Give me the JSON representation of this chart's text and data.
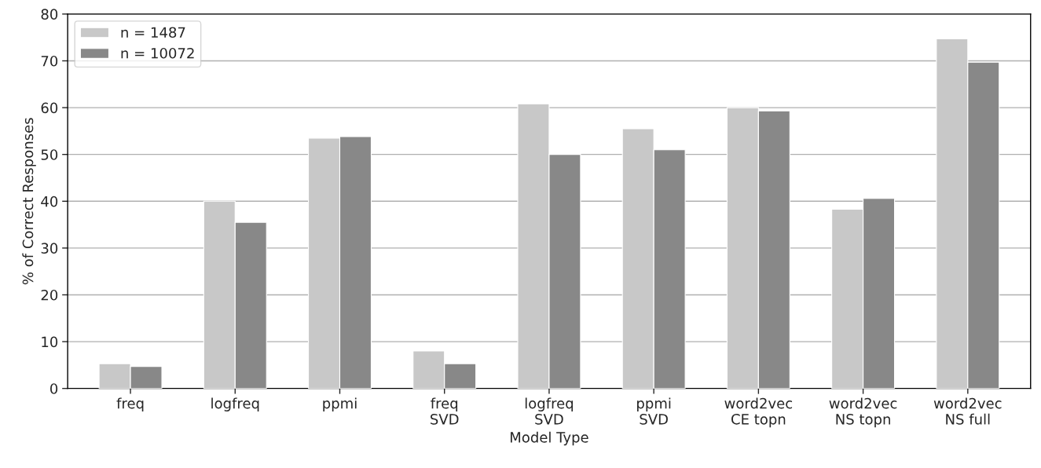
{
  "chart_data": {
    "type": "bar",
    "xlabel": "Model Type",
    "ylabel": "% of Correct Responses",
    "categories": [
      "freq",
      "logfreq",
      "ppmi",
      "freq\nSVD",
      "logfreq\nSVD",
      "ppmi\nSVD",
      "word2vec\nCE topn",
      "word2vec\nNS topn",
      "word2vec\nNS full"
    ],
    "series": [
      {
        "name": "n = 1487",
        "color": "#c8c8c8",
        "values": [
          5.3,
          40,
          53.5,
          8.0,
          60.8,
          55.5,
          60,
          38.3,
          74.7
        ]
      },
      {
        "name": "n = 10072",
        "color": "#888888",
        "values": [
          4.7,
          35.5,
          53.8,
          5.3,
          50,
          51,
          59.3,
          40.6,
          69.7
        ]
      }
    ],
    "ylim": [
      0,
      80
    ],
    "yticks": [
      0,
      10,
      20,
      30,
      40,
      50,
      60,
      70,
      80
    ],
    "grid": "y",
    "legend": "top left"
  }
}
